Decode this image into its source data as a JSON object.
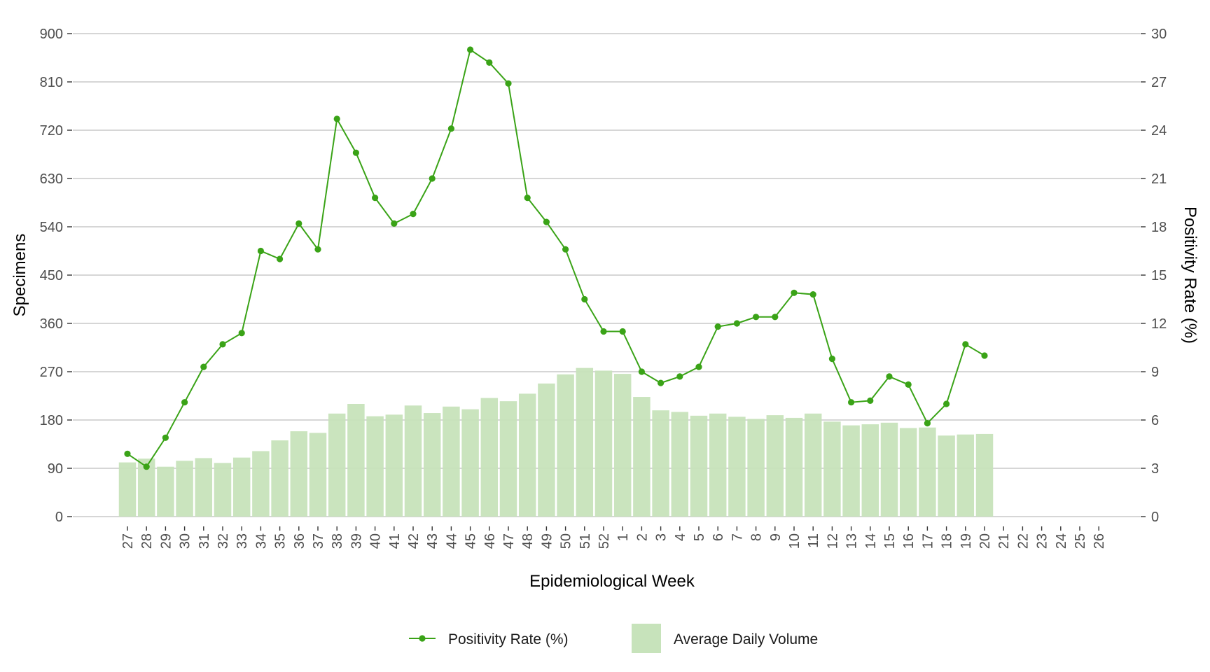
{
  "chart_data": {
    "type": "bar",
    "title": "",
    "xlabel": "Epidemiological Week",
    "ylabel": "Specimens",
    "y2label": "Positivity Rate (%)",
    "ylim": [
      0,
      900
    ],
    "y2lim": [
      0,
      30
    ],
    "yticks": [
      0,
      90,
      180,
      270,
      360,
      450,
      540,
      630,
      720,
      810,
      900
    ],
    "y2ticks": [
      0,
      3,
      6,
      9,
      12,
      15,
      18,
      21,
      24,
      27,
      30
    ],
    "grid": true,
    "legend_position": "bottom",
    "categories": [
      "27",
      "28",
      "29",
      "30",
      "31",
      "32",
      "33",
      "34",
      "35",
      "36",
      "37",
      "38",
      "39",
      "40",
      "41",
      "42",
      "43",
      "44",
      "45",
      "46",
      "47",
      "48",
      "49",
      "50",
      "51",
      "52",
      "1",
      "2",
      "3",
      "4",
      "5",
      "6",
      "7",
      "8",
      "9",
      "10",
      "11",
      "12",
      "13",
      "14",
      "15",
      "16",
      "17",
      "18",
      "19",
      "20",
      "21",
      "22",
      "23",
      "24",
      "25",
      "26"
    ],
    "series": [
      {
        "name": "Average Daily Volume",
        "type": "bar",
        "axis": "left",
        "color": "#c7e3bb",
        "values": [
          101,
          108,
          93,
          104,
          109,
          100,
          110,
          122,
          142,
          159,
          156,
          192,
          210,
          187,
          190,
          207,
          193,
          205,
          200,
          221,
          215,
          229,
          248,
          265,
          277,
          272,
          266,
          223,
          198,
          195,
          188,
          192,
          186,
          182,
          189,
          184,
          192,
          177,
          170,
          172,
          175,
          165,
          166,
          151,
          153,
          154,
          null,
          null,
          null,
          null,
          null,
          null
        ]
      },
      {
        "name": "Positivity Rate (%)",
        "type": "line",
        "axis": "right",
        "color": "#3aa317",
        "values": [
          3.9,
          3.1,
          4.9,
          7.1,
          9.3,
          10.7,
          11.4,
          16.5,
          16.0,
          18.2,
          16.6,
          24.7,
          22.6,
          19.8,
          18.2,
          18.8,
          21.0,
          24.1,
          29.0,
          28.2,
          26.9,
          19.8,
          18.3,
          16.6,
          13.5,
          11.5,
          11.5,
          9.0,
          8.3,
          8.7,
          9.3,
          11.8,
          12.0,
          12.4,
          12.4,
          13.9,
          13.8,
          9.8,
          7.1,
          7.2,
          8.7,
          8.2,
          5.8,
          7.0,
          10.7,
          10.0,
          null,
          null,
          null,
          null,
          null,
          null
        ]
      }
    ]
  }
}
